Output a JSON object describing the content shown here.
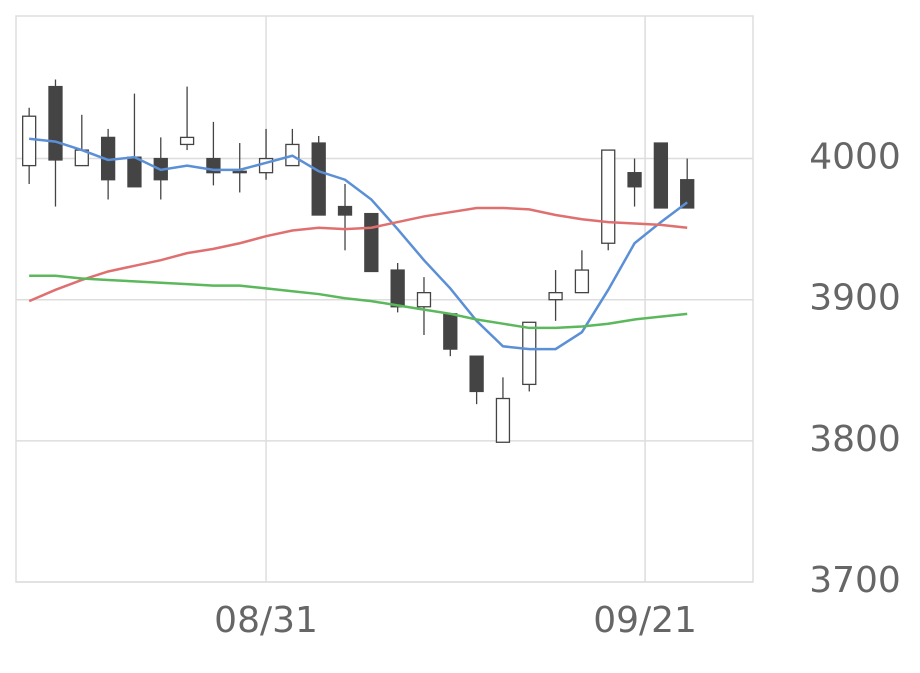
{
  "chart_data": {
    "type": "candlestick",
    "x": [
      0,
      1,
      2,
      3,
      4,
      5,
      6,
      7,
      8,
      9,
      10,
      11,
      12,
      13,
      14,
      15,
      16,
      17,
      18,
      19,
      20,
      21,
      22,
      23,
      24,
      25
    ],
    "open": [
      3995,
      4051,
      3995,
      4015,
      4001,
      4000,
      4010,
      4000,
      3991,
      3990,
      3995,
      4011,
      3966,
      3961,
      3921,
      3895,
      3890,
      3860,
      3799,
      3840,
      3900,
      3905,
      3940,
      3990,
      4011,
      3985
    ],
    "high": [
      4036,
      4056,
      4031,
      4021,
      4046,
      4015,
      4051,
      4026,
      4011,
      4021,
      4021,
      4016,
      3982,
      3961,
      3926,
      3916,
      3890,
      3860,
      3845,
      3884,
      3921,
      3935,
      4006,
      4000,
      4011,
      4000
    ],
    "low": [
      3982,
      3966,
      3995,
      3971,
      3980,
      3971,
      4006,
      3981,
      3976,
      3985,
      3995,
      3960,
      3935,
      3920,
      3891,
      3875,
      3860,
      3826,
      3799,
      3835,
      3885,
      3905,
      3935,
      3966,
      3965,
      3965
    ],
    "close": [
      4030,
      3999,
      4006,
      3985,
      3980,
      3985,
      4015,
      3990,
      3990,
      4000,
      4010,
      3960,
      3960,
      3920,
      3895,
      3905,
      3865,
      3835,
      3830,
      3884,
      3905,
      3921,
      4006,
      3980,
      3965,
      3965
    ],
    "up_color": "#ffffff",
    "down_color": "#444444",
    "edge_color": "#444444",
    "series": [
      {
        "color": "#5b8fd6",
        "values": [
          4014,
          4012,
          4006,
          3999,
          4001,
          3992,
          3995,
          3992,
          3992,
          3997,
          4002,
          3991,
          3985,
          3971,
          3950,
          3928,
          3908,
          3885,
          3867,
          3865,
          3865,
          3877,
          3907,
          3940,
          3955,
          3969
        ]
      },
      {
        "color": "#e07070",
        "values": [
          3899,
          3907,
          3914,
          3920,
          3924,
          3928,
          3933,
          3936,
          3940,
          3945,
          3949,
          3951,
          3950,
          3951,
          3955,
          3959,
          3962,
          3965,
          3965,
          3964,
          3960,
          3957,
          3955,
          3954,
          3953,
          3951
        ]
      },
      {
        "color": "#5cb85c",
        "values": [
          3917,
          3917,
          3915,
          3914,
          3913,
          3912,
          3911,
          3910,
          3910,
          3908,
          3906,
          3904,
          3901,
          3899,
          3896,
          3893,
          3890,
          3886,
          3883,
          3880,
          3880,
          3881,
          3883,
          3886,
          3888,
          3890
        ]
      }
    ],
    "xlim": [
      -0.5,
      27.5
    ],
    "xticks": [
      {
        "value": 9,
        "label": "08/31"
      },
      {
        "value": 23.4,
        "label": "09/21"
      }
    ],
    "ylim": [
      3700,
      4101
    ],
    "yticks": [
      3700,
      3800,
      3900,
      4000
    ],
    "grid": true
  }
}
